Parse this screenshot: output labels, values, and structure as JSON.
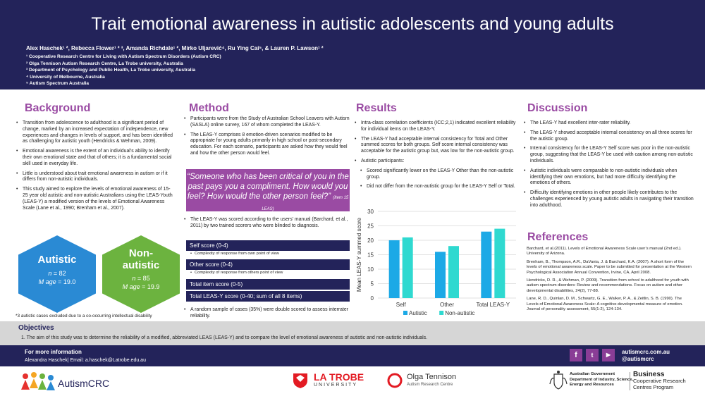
{
  "header": {
    "title": "Trait emotional awareness in autistic adolescents and young adults",
    "authors": "Alex Haschek¹ ², Rebecca Flower¹ ² ³, Amanda Richdale¹ ², Mirko Uljarević⁴, Ru Ying Cai⁵, & Lauren P. Lawson¹ ²",
    "affiliations": [
      "¹ Cooperative Research Centre for Living with Autism Spectrum Disorders (Autism CRC)",
      "² Olga Tennison Autism Research Centre, La Trobe university, Australia",
      "³ Department of Psychology and Public Health, La Trobe university, Australia",
      "⁴ University of Melbourne, Australia",
      "⁵ Autism Spectrum Australia"
    ]
  },
  "background": {
    "title": "Background",
    "bullets": [
      "Transition from adolescence to adulthood is a significant period of change, marked by an increased expectation of independence, new experiences and changes in levels of support, and has been identified as challenging for autistic youth (Hendricks & Wehman, 2009).",
      "Emotional awareness is the extent of an individual’s ability to identify their own emotional state and that of others; it is a fundamental social skill used in everyday life.",
      "Little is understood about trait emotional awareness in autism or if it differs from non-autistic individuals.",
      "This study aimed to explore the levels of emotional awareness of 15-25 year old autistic and non-autistic Australians using the LEAS-Youth (LEAS-Y) a modified version of the levels of Emotional Awareness Scale (Lane et al., 1990; Brenham  et al., 2007)."
    ],
    "hex_autistic": {
      "title": "Autistic",
      "n_label": "n",
      "n": "82",
      "age_label": "M age",
      "age": "19.0",
      "color": "#2a8ad4"
    },
    "hex_nonautistic": {
      "title": "Non-autistic",
      "n_label": "n",
      "n": "85",
      "age_label": "M age",
      "age": "19.9",
      "color": "#6cb33f"
    },
    "footnote": "*3 autistic cases excluded due to a co-occurring intellectual disability"
  },
  "method": {
    "title": "Method",
    "bullets": [
      "Participants were from the Study of Australian School Leavers with Autism (SASLA) online survey, 167 of whom completed the LEAS-Y.",
      "The LEAS-Y comprises 8 emotion-driven scenarios modified to be appropriate for young adults primarily in high school or post-secondary education. For each scenario, participants are asked how they would feel and how the other person would feel."
    ],
    "quote": "“Someone who has been critical of you in the past pays you a compliment. How would you feel? How would the other person feel?”",
    "quote_source": "(Item 15 LEAS)",
    "bullets2": [
      "The LEAS-Y was scored according to the users’ manual (Barchard, et al., 2011) by two trained scorers who were blinded to diagnosis."
    ],
    "scores": [
      {
        "label": "Self score (0-4)",
        "sub": "Complexity of response from own point of view"
      },
      {
        "label": "Other score (0-4)",
        "sub": "Complexity of response from others point of view"
      },
      {
        "label": "Total item score (0-5)",
        "sub": ""
      },
      {
        "label": "Total LEAS-Y score (0-40; sum of all 8 items)",
        "sub": ""
      }
    ],
    "bullets3": [
      "A random sample of cases (35%) were double scored to assess interrater reliability."
    ]
  },
  "results": {
    "title": "Results",
    "bullets": [
      "Intra-class correlation coefficients (ICC;2,1) indicated excellent reliability for individual items on the LEAS-Y.",
      "The LEAS-Y had acceptable internal consistency for Total and Other summed scores for both groups. Self score internal consistency was acceptable for the autistic group but, was low for the non-autistic group.",
      "Autistic participants:"
    ],
    "sub_bullets": [
      "Scored significantly lower on the LEAS-Y Other than the non-autistic group.",
      "Did not differ from the non-autistic group for the LEAS-Y Self or Total."
    ]
  },
  "chart_data": {
    "type": "bar",
    "categories": [
      "Self",
      "Other",
      "Total LEAS-Y"
    ],
    "series": [
      {
        "name": "Autistic",
        "values": [
          20,
          16,
          23
        ],
        "color": "#1ca9e6"
      },
      {
        "name": "Non-autistic",
        "values": [
          21,
          18,
          24
        ],
        "color": "#2fd9d0"
      }
    ],
    "ylabel": "Mean LEAS-Y summed score",
    "xlabel": "",
    "ylim": [
      0,
      30
    ],
    "yticks": [
      "0",
      "5",
      "10",
      "15",
      "20",
      "25",
      "30"
    ],
    "grid": true,
    "legend": "bottom"
  },
  "discussion": {
    "title": "Discussion",
    "bullets": [
      "The LEAS-Y had excellent inter-rater reliability.",
      "The LEAS-Y showed acceptable internal consistency on all three scores for the autistic group.",
      "Internal consistency for the LEAS-Y Self score was poor in the non-autistic group, suggesting that the LEAS-Y be used with caution among non-autistic individuals.",
      "Autistic individuals were comparable to non-autistic individuals when identifying their own emotions, but had more difficulty identifying the emotions of others.",
      "Difficulty identifying emotions in other people likely contributes to the challenges experienced by young autistic adults in navigating their transition into adulthood."
    ]
  },
  "references": {
    "title": "References",
    "items": [
      "Barchard, et al.(2011). Levels of Emotional Awareness Scale user’s manual (2nd ed.). University of Arizona.",
      "Brenham, B., Thompson, A.R., DaVania, J. & Barchard, K.A. (2007). A short form of the levels of emotional awareness scale. Paper to be submitted for presentation at the Western Psychological Association Annual Convention, Irvine, CA, April 2008.",
      "Hendricks, D. R., & Wehman, P. (2009). Transition from school to adulthood for youth with autism spectrum disorders: Review and recommendations. Focus on autism and other developmental disabilities, 24(2), 77-88.",
      "Lane, R. D., Quinlan, D. M., Schwartz, G. E., Walker, P. A., & Zeitlin, S. B. (1990). The Levels of Emotional Awareness Scale: A cognitive-developmental measure of emotion. Journal of personality assessment, 55(1-2), 124-134."
    ]
  },
  "objectives": {
    "title": "Objectives",
    "text": "1.  The aim of this study was to determine the reliability of a modified, abbreviated LEAS (LEAS-Y) and to compare the level of emotional awareness of autistic and non-autistic individuals."
  },
  "footer": {
    "more_info": "For more information",
    "contact": "Alexandra Haschek| Email: a.haschek@Latrobe.edu.au",
    "site": "autismcrc.com.au",
    "handle": "@autismcrc",
    "social_icons": [
      "facebook-icon",
      "twitter-icon",
      "youtube-icon"
    ],
    "logos": {
      "autismcrc": "AutismCRC",
      "latrobe_1": "LA TROBE",
      "latrobe_2": "UNIVERSITY",
      "olga_1": "Olga Tennison",
      "olga_2": "Autism Research Centre",
      "gov_1": "Australian Government",
      "gov_2": "Department of Industry, Science,",
      "gov_3": "Energy and Resources",
      "biz_1": "Business",
      "biz_2": "Cooperative Research",
      "biz_3": "Centres Program"
    }
  }
}
